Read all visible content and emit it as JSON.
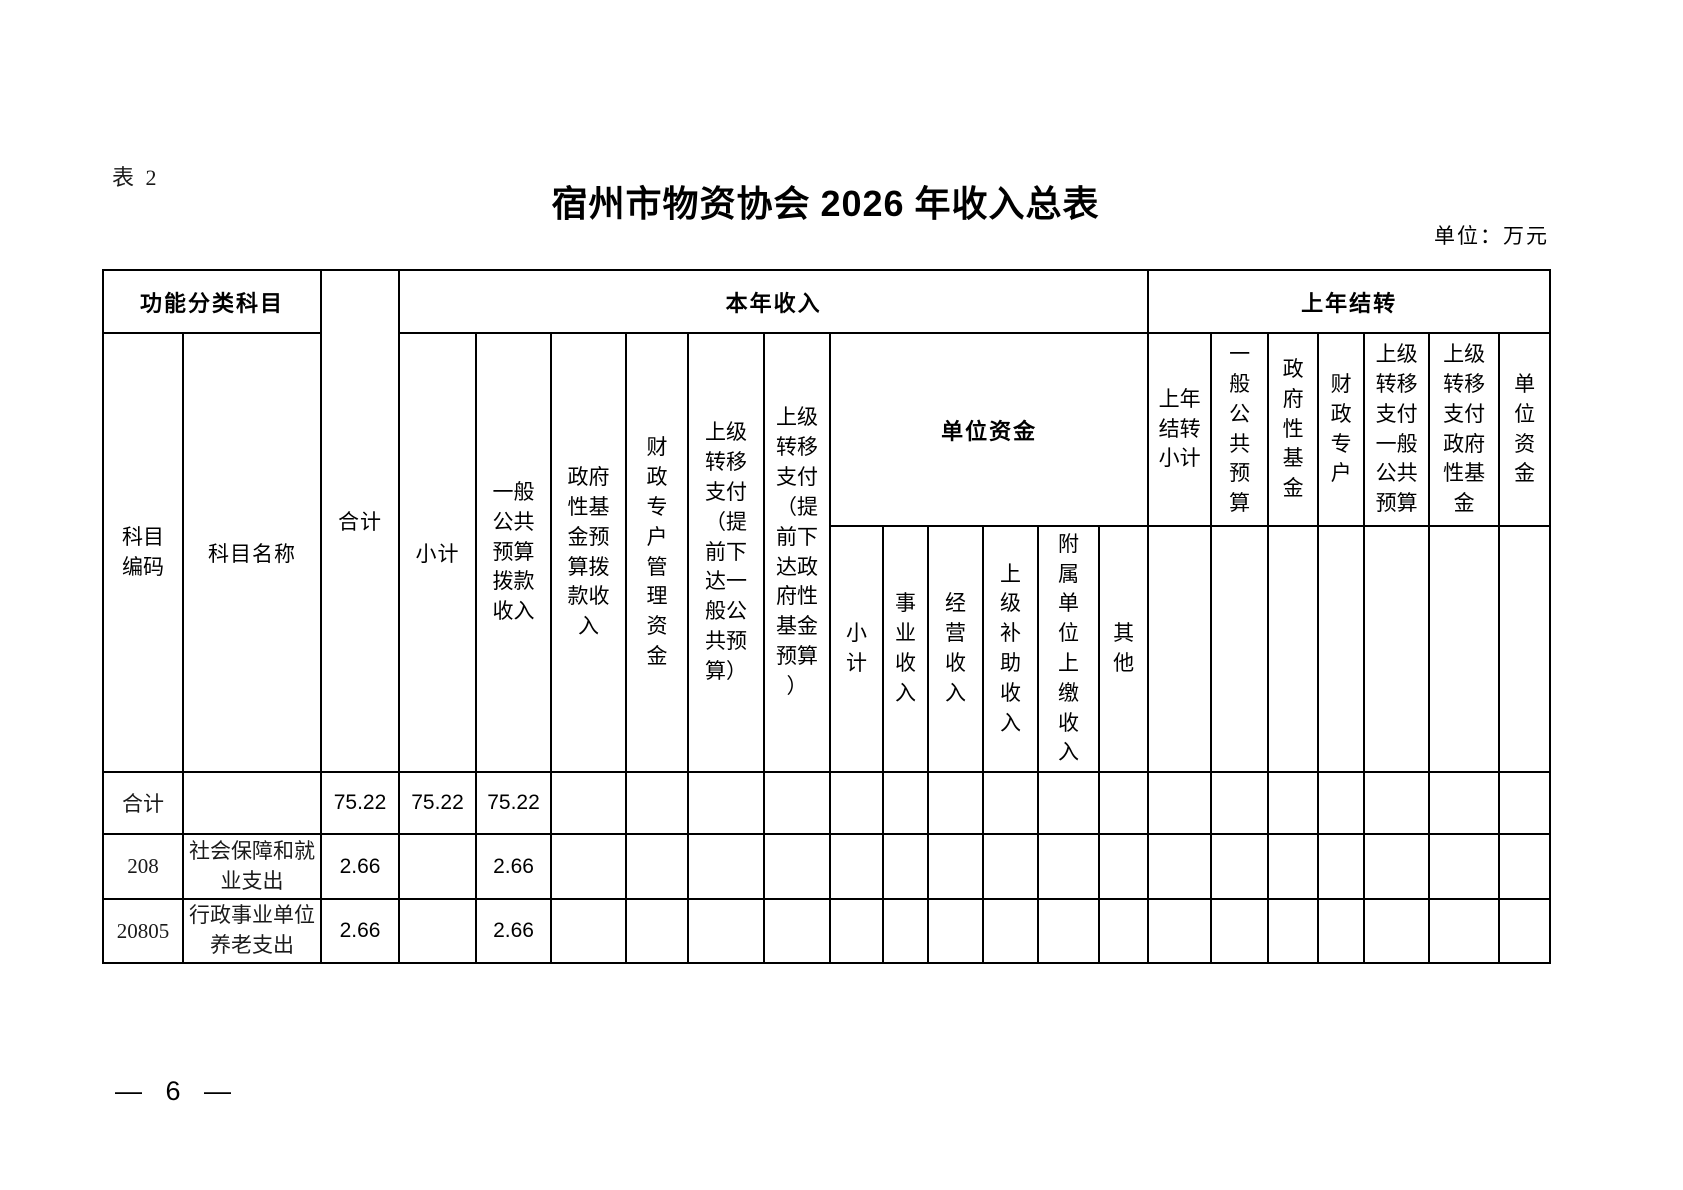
{
  "page": {
    "table_label": "表 2",
    "unit_note": "单位：万元",
    "page_number": "— 6 —"
  },
  "title": {
    "part1": "宿州市物资协会",
    "year": "2026",
    "part2": "年收入总表"
  },
  "table": {
    "header": {
      "functional_group": "功能分类科目",
      "subject_code": "科目编码",
      "subject_name": "科目名称",
      "total": "合计",
      "current_year_income_group": "本年收入",
      "cy_subtotal": "小计",
      "cy_general_public_budget": "一般公共预算拨款收入",
      "cy_gov_fund_budget": "政府性基金预算拨款收入",
      "cy_fiscal_special_account": "财政专户管理资金",
      "cy_transfer_general": "上级转移支付（提前下达一般公共预算）",
      "cy_transfer_gov_fund": "上级转移支付（提前下达政府性基金预算）",
      "unit_funds_group": "单位资金",
      "uf_subtotal": "小计",
      "uf_operating_income": "事业收入",
      "uf_business_income": "经营收入",
      "uf_superior_subsidy": "上级补助收入",
      "uf_affiliated_units": "附属单位上缴收入",
      "uf_other": "其他",
      "carryover_group": "上年结转",
      "co_subtotal": "上年结转小计",
      "co_general_public_budget": "一般公共预算",
      "co_gov_fund": "政府性基金",
      "co_fiscal_special_account": "财政专户",
      "co_transfer_general": "上级转移支付一般公共预算",
      "co_transfer_gov_fund": "上级转移支付政府性基金",
      "co_unit_funds": "单位资金"
    },
    "rows": [
      {
        "code": "合计",
        "name": "",
        "total": "75.22",
        "cy_subtotal": "75.22",
        "cy_general": "75.22"
      },
      {
        "code": "208",
        "name": "社会保障和就业支出",
        "total": "2.66",
        "cy_subtotal": "",
        "cy_general": "2.66"
      },
      {
        "code": "20805",
        "name": "行政事业单位养老支出",
        "total": "2.66",
        "cy_subtotal": "",
        "cy_general": "2.66"
      }
    ]
  }
}
